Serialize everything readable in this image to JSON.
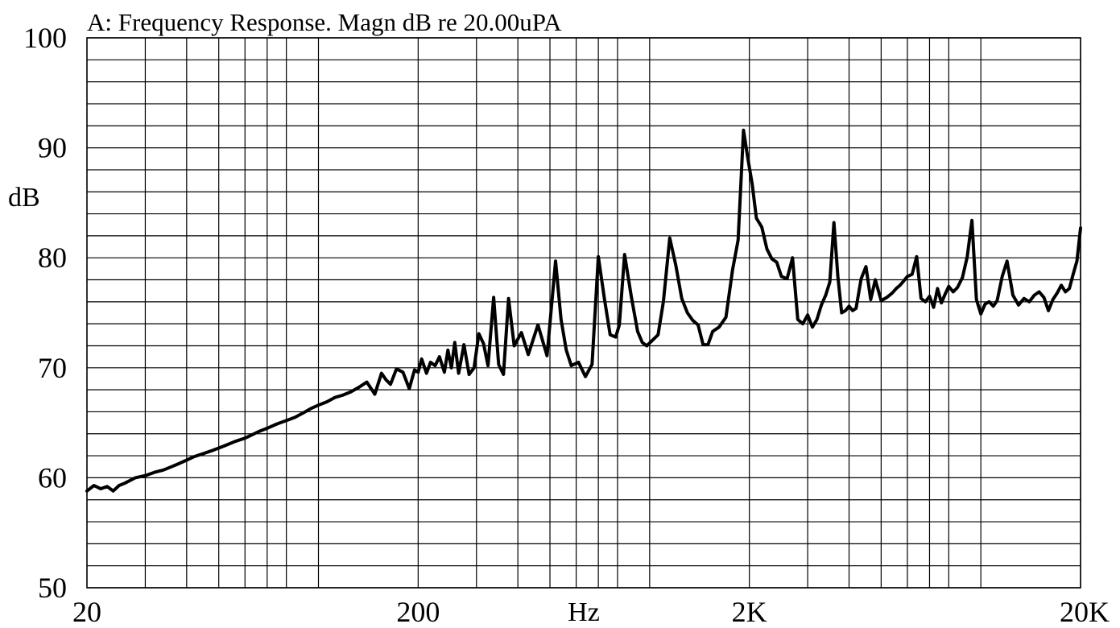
{
  "chart_data": {
    "type": "line",
    "title": "A: Frequency Response. Magn dB re 20.00uPA",
    "xlabel": "Hz",
    "ylabel": "dB",
    "x_scale": "log",
    "xlim": [
      20,
      20000
    ],
    "ylim": [
      50,
      100
    ],
    "grid": true,
    "y_major_ticks": [
      50,
      60,
      70,
      80,
      90,
      100
    ],
    "y_tick_labels": [
      "50",
      "60",
      "70",
      "80",
      "90",
      "100"
    ],
    "y_minor_step": 2,
    "x_tick_values": [
      20,
      200,
      2000,
      20000
    ],
    "x_tick_labels": [
      "20",
      "200",
      "2K",
      "20K"
    ],
    "x_grid_lines": [
      30,
      40,
      50,
      60,
      70,
      80,
      100,
      200,
      300,
      400,
      500,
      600,
      700,
      800,
      1000,
      2000,
      3000,
      4000,
      5000,
      6000,
      7000,
      8000,
      10000,
      20000
    ],
    "line_color": "#000000",
    "series": [
      {
        "x": [
          20,
          21,
          22,
          23,
          24,
          25,
          26,
          28,
          30,
          32,
          34,
          36,
          38,
          40,
          42,
          45,
          48,
          50,
          53,
          56,
          60,
          63,
          66,
          70,
          75,
          80,
          85,
          90,
          95,
          100,
          106,
          112,
          118,
          125,
          132,
          140,
          148,
          155,
          160,
          165,
          172,
          180,
          188,
          195,
          200,
          205,
          212,
          218,
          225,
          232,
          240,
          246,
          252,
          258,
          265,
          275,
          285,
          295,
          305,
          315,
          325,
          338,
          350,
          362,
          375,
          390,
          410,
          430,
          460,
          490,
          520,
          540,
          560,
          580,
          610,
          640,
          670,
          700,
          730,
          760,
          790,
          810,
          840,
          880,
          920,
          950,
          980,
          1020,
          1060,
          1100,
          1150,
          1200,
          1250,
          1300,
          1350,
          1400,
          1450,
          1500,
          1550,
          1620,
          1700,
          1780,
          1850,
          1920,
          1980,
          2040,
          2100,
          2180,
          2260,
          2340,
          2420,
          2500,
          2600,
          2700,
          2800,
          2900,
          3000,
          3100,
          3200,
          3300,
          3400,
          3500,
          3600,
          3700,
          3800,
          3900,
          4000,
          4100,
          4200,
          4350,
          4500,
          4650,
          4800,
          5000,
          5200,
          5400,
          5550,
          5700,
          5850,
          6000,
          6200,
          6400,
          6600,
          6800,
          7000,
          7200,
          7400,
          7600,
          7800,
          8000,
          8250,
          8500,
          8800,
          9100,
          9400,
          9700,
          10000,
          10300,
          10600,
          10900,
          11200,
          11600,
          12000,
          12500,
          13000,
          13500,
          14000,
          14500,
          15000,
          15500,
          16000,
          16500,
          17000,
          17500,
          18000,
          18500,
          19000,
          19500,
          20000
        ],
        "y": [
          58.8,
          59.3,
          59.0,
          59.2,
          58.8,
          59.3,
          59.5,
          60.0,
          60.2,
          60.5,
          60.7,
          61.0,
          61.3,
          61.6,
          61.9,
          62.2,
          62.5,
          62.7,
          63.0,
          63.3,
          63.6,
          63.9,
          64.2,
          64.5,
          64.9,
          65.2,
          65.5,
          65.9,
          66.3,
          66.6,
          66.9,
          67.3,
          67.5,
          67.8,
          68.2,
          68.7,
          67.6,
          69.5,
          68.9,
          68.5,
          69.9,
          69.6,
          68.1,
          69.8,
          69.6,
          70.8,
          69.5,
          70.5,
          70.2,
          71.0,
          69.6,
          71.6,
          70.0,
          72.3,
          69.5,
          72.1,
          69.4,
          70.0,
          73.1,
          72.2,
          70.2,
          76.4,
          70.3,
          69.4,
          76.3,
          72.0,
          73.2,
          71.2,
          73.9,
          71.1,
          79.7,
          74.4,
          71.6,
          70.2,
          70.5,
          69.2,
          70.3,
          80.1,
          76.3,
          73.0,
          72.8,
          73.9,
          80.3,
          76.5,
          73.3,
          72.3,
          72.0,
          72.5,
          73.0,
          76.0,
          81.8,
          79.3,
          76.3,
          75.0,
          74.3,
          73.9,
          72.1,
          72.1,
          73.3,
          73.7,
          74.6,
          78.9,
          81.6,
          91.6,
          89.0,
          86.7,
          83.6,
          82.8,
          80.8,
          79.9,
          79.6,
          78.3,
          78.1,
          80.0,
          74.4,
          74.0,
          74.8,
          73.7,
          74.4,
          75.7,
          76.6,
          77.8,
          83.2,
          78.3,
          75.0,
          75.2,
          75.6,
          75.2,
          75.4,
          78.1,
          79.2,
          76.2,
          78.0,
          76.1,
          76.4,
          76.8,
          77.2,
          77.5,
          77.9,
          78.3,
          78.5,
          80.1,
          76.3,
          76.0,
          76.5,
          75.5,
          77.2,
          75.9,
          76.7,
          77.4,
          76.9,
          77.3,
          78.2,
          80.1,
          83.4,
          76.2,
          74.9,
          75.8,
          76.0,
          75.6,
          76.1,
          78.3,
          79.7,
          76.6,
          75.7,
          76.3,
          76.0,
          76.6,
          76.9,
          76.4,
          75.2,
          76.2,
          76.8,
          77.5,
          76.9,
          77.2,
          78.5,
          79.7,
          82.7
        ]
      }
    ]
  }
}
